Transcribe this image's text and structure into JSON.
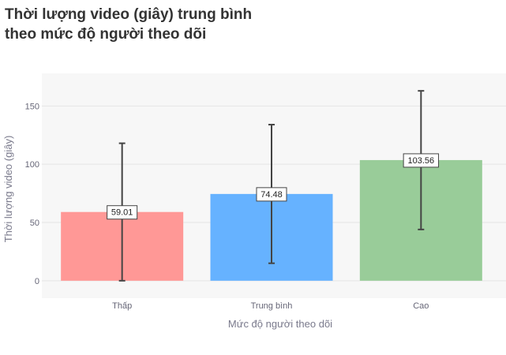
{
  "chart_data": {
    "type": "bar",
    "title_line1": "Thời lượng video (giây) trung bình",
    "title_line2": "theo mức độ người theo dõi",
    "xlabel": "Mức độ người theo dõi",
    "ylabel": "Thời lượng video (giây)",
    "categories": [
      "Thấp",
      "Trung bình",
      "Cao"
    ],
    "values": [
      59.01,
      74.48,
      103.56
    ],
    "value_labels": [
      "59.01",
      "74.48",
      "103.56"
    ],
    "error_low": [
      0,
      15,
      44
    ],
    "error_high": [
      118,
      134,
      163
    ],
    "colors": [
      "#ff9896",
      "#66b2ff",
      "#99cc99"
    ],
    "ylim": [
      -15,
      178
    ],
    "yticks": [
      0,
      50,
      100,
      150
    ],
    "ytick_labels": [
      "0",
      "50",
      "100",
      "150"
    ],
    "grid": true,
    "legend": "none"
  }
}
